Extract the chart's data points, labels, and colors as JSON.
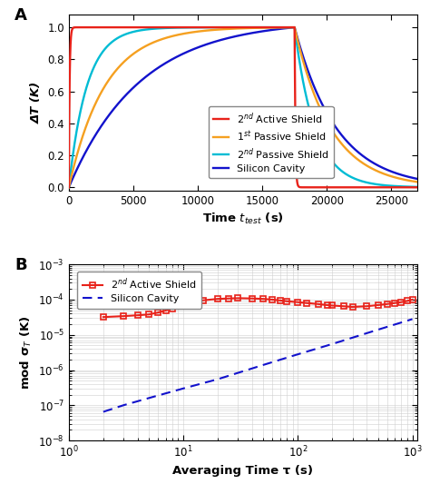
{
  "panel_A": {
    "xlabel": "Time $t_{test}$ (s)",
    "ylabel": "ΔΤ (K)",
    "xlim": [
      0,
      27000
    ],
    "ylim": [
      -0.02,
      1.08
    ],
    "yticks": [
      0.0,
      0.2,
      0.4,
      0.6,
      0.8,
      1.0
    ],
    "xticks": [
      0,
      5000,
      10000,
      15000,
      20000,
      25000
    ],
    "step_off": 17500,
    "tau_active_rise": 60,
    "tau_active_fall": 60,
    "tau_1st_rise": 2800,
    "tau_1st_fall": 2800,
    "tau_2nd_rise": 1400,
    "tau_2nd_fall": 1600,
    "tau_si_rise": 5500,
    "tau_si_fall": 3200,
    "color_active": "#e8221a",
    "color_1st": "#f5a020",
    "color_2nd": "#00bcd4",
    "color_si": "#1212cc",
    "label_active": "2$^{nd}$ Active Shield",
    "label_1st": "1$^{st}$ Passive Shield",
    "label_2nd": "2$^{nd}$ Passive Shield",
    "label_si": "Silicon Cavity"
  },
  "panel_B": {
    "xlabel": "Averaging Time τ (s)",
    "ylabel": "mod σ$_T$ (K)",
    "xlim": [
      1,
      1100
    ],
    "red_x": [
      2,
      3,
      4,
      5,
      6,
      7,
      8,
      10,
      12,
      15,
      20,
      25,
      30,
      40,
      50,
      60,
      70,
      80,
      100,
      120,
      150,
      180,
      200,
      250,
      300,
      400,
      500,
      600,
      700,
      800,
      900,
      1000
    ],
    "red_y": [
      3.2e-05,
      3.4e-05,
      3.6e-05,
      3.8e-05,
      4.3e-05,
      4.9e-05,
      5.6e-05,
      7.6e-05,
      8.6e-05,
      9.6e-05,
      0.000105,
      0.000108,
      0.00011,
      0.000108,
      0.000105,
      0.0001,
      9.5e-05,
      9e-05,
      8.5e-05,
      8e-05,
      7.5e-05,
      7e-05,
      6.8e-05,
      6.5e-05,
      6.2e-05,
      6.5e-05,
      7e-05,
      7.5e-05,
      8e-05,
      8.5e-05,
      9.2e-05,
      0.0001
    ],
    "blue_x": [
      2,
      3,
      5,
      10,
      20,
      50,
      100,
      200,
      500,
      1000
    ],
    "blue_y": [
      6.5e-08,
      1e-07,
      1.6e-07,
      3e-07,
      5.5e-07,
      1.4e-06,
      2.8e-06,
      5.5e-06,
      1.4e-05,
      2.8e-05
    ],
    "red_color": "#e8221a",
    "blue_color": "#1212cc",
    "label_red": "2$^{nd}$ Active Shield",
    "label_blue": "Silicon Cavity"
  },
  "figure_bg": "#ffffff"
}
